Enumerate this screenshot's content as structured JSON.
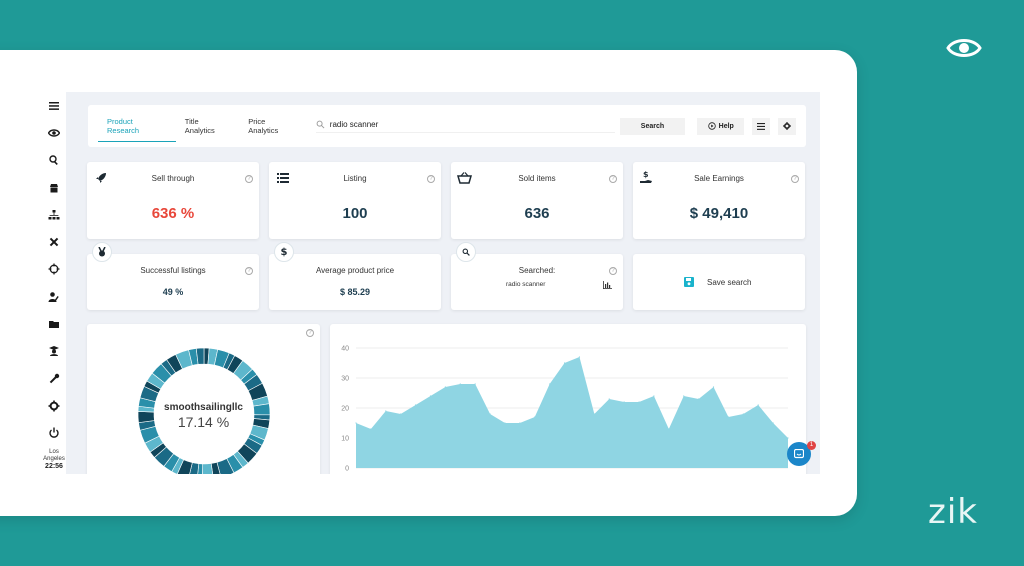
{
  "brand": {
    "logo_text": "zik",
    "eye_icon": "eye-icon"
  },
  "sidebar": {
    "icons": [
      "menu-icon",
      "eye-icon",
      "search-icon",
      "store-icon",
      "hierarchy-icon",
      "tools-icon",
      "crosshair-icon",
      "user-edit-icon",
      "folder-icon",
      "graduate-icon",
      "wrench-icon",
      "gear-icon",
      "power-icon"
    ],
    "location": "Los Angeles",
    "time": "22:56"
  },
  "topbar": {
    "tabs": [
      "Product Research",
      "Title Analytics",
      "Price Analytics"
    ],
    "active_tab": "Product Research",
    "search_value": "radio scanner",
    "search_button": "Search",
    "help_button": "Help"
  },
  "stats": {
    "sell_through": {
      "label": "Sell through",
      "value": "636 %"
    },
    "listing": {
      "label": "Listing",
      "value": "100"
    },
    "sold_items": {
      "label": "Sold items",
      "value": "636"
    },
    "sale_earnings": {
      "label": "Sale Earnings",
      "value": "$ 49,410"
    },
    "successful_listings": {
      "label": "Successful listings",
      "value": "49 %"
    },
    "avg_price": {
      "label": "Average product price",
      "value": "$ 85.29"
    },
    "searched": {
      "label": "Searched:",
      "value": "radio scanner"
    },
    "save_search": {
      "label": "Save search"
    }
  },
  "donut": {
    "seller": "smoothsailingllc",
    "percent": "17.14 %",
    "colors": [
      "#10455a",
      "#1b6a86",
      "#2a8faa",
      "#5db7cc"
    ]
  },
  "colors": {
    "accent": "#1aa3b9",
    "danger": "#e8473a",
    "dark_value": "#1e3e50",
    "area_fill": "#8fd5e3"
  },
  "chart_data": {
    "type": "area",
    "title": "",
    "xlabel": "",
    "ylabel": "",
    "ylim": [
      0,
      40
    ],
    "yticks": [
      "40",
      "30",
      "20",
      "10",
      "0"
    ],
    "grid": true,
    "series": [
      {
        "values": [
          15,
          13,
          19,
          18,
          21,
          24,
          27,
          28,
          28,
          18,
          15,
          15,
          17,
          28,
          35,
          37,
          18,
          23,
          22,
          22,
          24,
          13,
          24,
          23,
          27,
          17,
          18,
          21,
          15,
          10
        ]
      }
    ]
  }
}
